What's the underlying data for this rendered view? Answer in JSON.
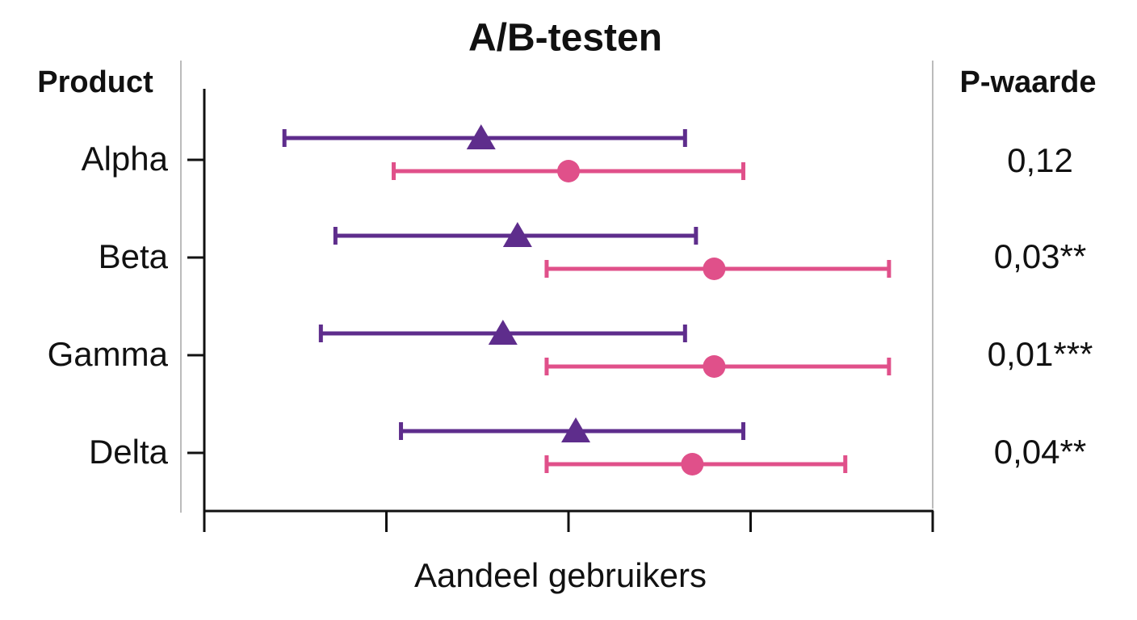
{
  "chart_data": {
    "type": "forest",
    "title": "A/B-testen",
    "row_header": "Product",
    "value_header": "P-waarde",
    "xlabel": "Aandeel gebruikers",
    "categories": [
      "Alpha",
      "Beta",
      "Gamma",
      "Delta"
    ],
    "series": [
      {
        "color": "#5e2d8c",
        "marker": "triangle",
        "values": [
          38,
          43,
          41,
          51
        ],
        "low": [
          11,
          18,
          16,
          27
        ],
        "high": [
          66,
          67.5,
          66,
          74
        ]
      },
      {
        "color": "#e0508a",
        "marker": "circle",
        "values": [
          50,
          70,
          70,
          67
        ],
        "low": [
          26,
          47,
          47,
          47
        ],
        "high": [
          74,
          94,
          94,
          88
        ]
      }
    ],
    "p_value_labels": [
      "0,12",
      "0,03**",
      "0,01***",
      "0,04**"
    ],
    "xlim": [
      0,
      100
    ],
    "xticks": [
      0,
      25,
      50,
      75,
      100
    ]
  }
}
